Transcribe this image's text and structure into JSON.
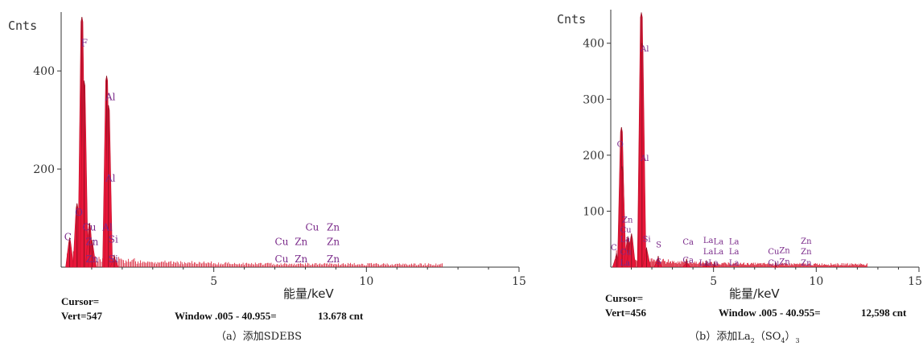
{
  "chart_data": [
    {
      "type": "bar",
      "ylabel": "Cnts",
      "xlabel": "能量/keV",
      "xlim": [
        0,
        15
      ],
      "ylim": [
        0,
        520
      ],
      "x_ticks": [
        "5",
        "10",
        "15"
      ],
      "y_ticks": [
        "200",
        "400"
      ],
      "caption": "（a）添加SDEBS",
      "cursor_label": "Cursor=",
      "vert": "Vert=547",
      "window": "Window .005 - 40.955=",
      "count": "13.678 cnt",
      "peaks": [
        {
          "x": 0.28,
          "y": 60
        },
        {
          "x": 0.52,
          "y": 130
        },
        {
          "x": 0.68,
          "y": 510
        },
        {
          "x": 0.75,
          "y": 380
        },
        {
          "x": 0.93,
          "y": 90
        },
        {
          "x": 1.01,
          "y": 55
        },
        {
          "x": 1.49,
          "y": 390
        },
        {
          "x": 1.55,
          "y": 330
        },
        {
          "x": 1.74,
          "y": 25
        }
      ],
      "peak_labels": [
        {
          "text": "F",
          "x": 0.65,
          "y": 450
        },
        {
          "text": "Al",
          "x": 1.45,
          "y": 340
        },
        {
          "text": "Al",
          "x": 1.45,
          "y": 175
        },
        {
          "text": "O",
          "x": 0.45,
          "y": 105
        },
        {
          "text": "Cu",
          "x": 0.7,
          "y": 75
        },
        {
          "text": "Al",
          "x": 1.35,
          "y": 75
        },
        {
          "text": "C",
          "x": 0.1,
          "y": 55
        },
        {
          "text": "Zn",
          "x": 0.8,
          "y": 45
        },
        {
          "text": "Si",
          "x": 1.55,
          "y": 50
        },
        {
          "text": "Zn",
          "x": 0.8,
          "y": 10
        },
        {
          "text": "Si",
          "x": 1.55,
          "y": 10
        },
        {
          "text": "Cu",
          "x": 8.0,
          "y": 75
        },
        {
          "text": "Zn",
          "x": 8.7,
          "y": 75
        },
        {
          "text": "Cu",
          "x": 7.0,
          "y": 45
        },
        {
          "text": "Zn",
          "x": 7.65,
          "y": 45
        },
        {
          "text": "Zn",
          "x": 8.7,
          "y": 45
        },
        {
          "text": "Cu",
          "x": 7.0,
          "y": 10
        },
        {
          "text": "Zn",
          "x": 7.65,
          "y": 10
        },
        {
          "text": "Zn",
          "x": 8.7,
          "y": 10
        }
      ]
    },
    {
      "type": "bar",
      "ylabel": "Cnts",
      "xlabel": "能量/keV",
      "xlim": [
        0,
        15
      ],
      "ylim": [
        0,
        460
      ],
      "x_ticks": [
        "5",
        "10",
        "15"
      ],
      "y_ticks": [
        "100",
        "200",
        "300",
        "400"
      ],
      "caption_prefix": "（b）添加La",
      "caption_sub1": "2",
      "caption_mid": "（SO",
      "caption_sub2": "4",
      "caption_end": "）",
      "caption_sub3": "3",
      "cursor_label": "Cursor=",
      "vert": "Vert=456",
      "window": "Window .005 - 40.955=",
      "count": "12,598 cnt",
      "peaks": [
        {
          "x": 0.28,
          "y": 25
        },
        {
          "x": 0.52,
          "y": 250
        },
        {
          "x": 0.55,
          "y": 180
        },
        {
          "x": 0.83,
          "y": 55
        },
        {
          "x": 0.93,
          "y": 45
        },
        {
          "x": 1.01,
          "y": 60
        },
        {
          "x": 1.49,
          "y": 455
        },
        {
          "x": 1.52,
          "y": 400
        },
        {
          "x": 1.74,
          "y": 35
        },
        {
          "x": 2.31,
          "y": 20
        },
        {
          "x": 3.69,
          "y": 15
        },
        {
          "x": 4.65,
          "y": 12
        },
        {
          "x": 5.04,
          "y": 10
        },
        {
          "x": 8.04,
          "y": 8
        }
      ],
      "peak_labels": [
        {
          "text": "Al",
          "x": 1.45,
          "y": 385
        },
        {
          "text": "O",
          "x": 0.3,
          "y": 215
        },
        {
          "text": "Al",
          "x": 1.45,
          "y": 190
        },
        {
          "text": "Zn",
          "x": 0.55,
          "y": 80
        },
        {
          "text": "Cu",
          "x": 0.45,
          "y": 62
        },
        {
          "text": "La",
          "x": 0.45,
          "y": 45
        },
        {
          "text": "Si",
          "x": 1.55,
          "y": 45
        },
        {
          "text": "S",
          "x": 2.2,
          "y": 35
        },
        {
          "text": "C",
          "x": 0.0,
          "y": 30
        },
        {
          "text": "Cu",
          "x": 0.45,
          "y": 22
        },
        {
          "text": "Ca",
          "x": 3.5,
          "y": 40
        },
        {
          "text": "La",
          "x": 4.5,
          "y": 43
        },
        {
          "text": "La",
          "x": 5.0,
          "y": 41
        },
        {
          "text": "La",
          "x": 5.75,
          "y": 41
        },
        {
          "text": "La",
          "x": 4.5,
          "y": 23
        },
        {
          "text": "La",
          "x": 5.0,
          "y": 23
        },
        {
          "text": "La",
          "x": 5.75,
          "y": 23
        },
        {
          "text": "Cu",
          "x": 7.65,
          "y": 23
        },
        {
          "text": "Zn",
          "x": 8.2,
          "y": 25
        },
        {
          "text": "Zn",
          "x": 9.25,
          "y": 42
        },
        {
          "text": "Zn",
          "x": 9.25,
          "y": 23
        },
        {
          "text": "La",
          "x": 0.45,
          "y": 3
        },
        {
          "text": "S",
          "x": 2.2,
          "y": 5
        },
        {
          "text": "Ca",
          "x": 3.5,
          "y": 8
        },
        {
          "text": "La",
          "x": 4.3,
          "y": 3
        },
        {
          "text": "La",
          "x": 4.75,
          "y": 3
        },
        {
          "text": "La",
          "x": 5.75,
          "y": 3
        },
        {
          "text": "Cu",
          "x": 7.65,
          "y": 3
        },
        {
          "text": "Zn",
          "x": 8.2,
          "y": 5
        },
        {
          "text": "Zn",
          "x": 9.25,
          "y": 3
        }
      ]
    }
  ]
}
